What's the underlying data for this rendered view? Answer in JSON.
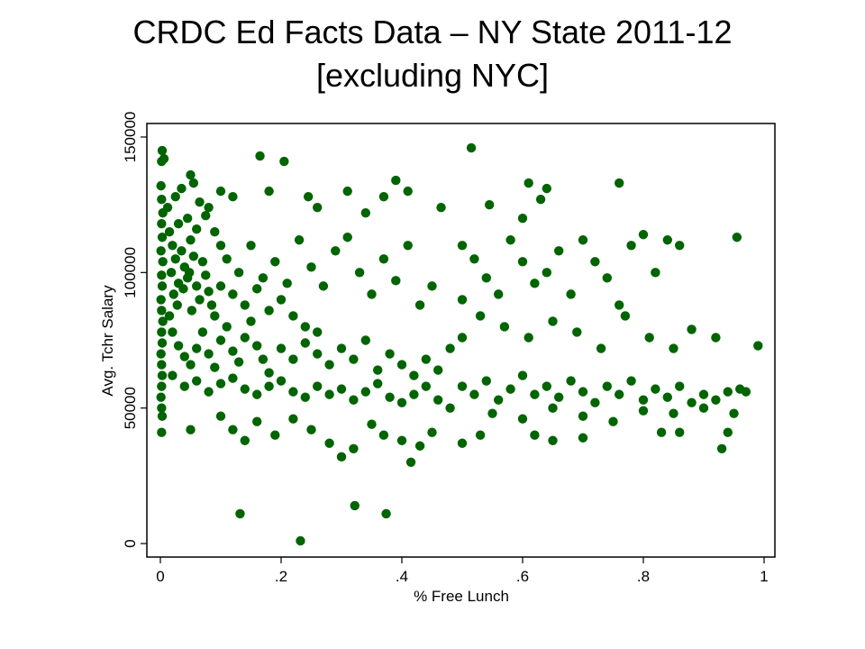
{
  "chart_data": {
    "type": "scatter",
    "title": "CRDC Ed Facts Data – NY State 2011-12",
    "subtitle": "[excluding NYC]",
    "xlabel": "% Free Lunch",
    "ylabel": "Avg. Tchr Salary",
    "xlim": [
      0,
      1
    ],
    "ylim": [
      0,
      150000
    ],
    "xticks": [
      {
        "v": 0,
        "label": "0"
      },
      {
        "v": 0.2,
        "label": ".2"
      },
      {
        "v": 0.4,
        "label": ".4"
      },
      {
        "v": 0.6,
        "label": ".6"
      },
      {
        "v": 0.8,
        "label": ".8"
      },
      {
        "v": 1,
        "label": "1"
      }
    ],
    "yticks": [
      {
        "v": 0,
        "label": "0"
      },
      {
        "v": 50000,
        "label": "50000"
      },
      {
        "v": 100000,
        "label": "100000"
      },
      {
        "v": 150000,
        "label": "150000"
      }
    ],
    "grid": false,
    "marker_color": "#006400",
    "points": [
      [
        0.003,
        145000
      ],
      [
        0.002,
        141000
      ],
      [
        0.006,
        142000
      ],
      [
        0.001,
        132000
      ],
      [
        0.002,
        127000
      ],
      [
        0.004,
        122000
      ],
      [
        0.002,
        118000
      ],
      [
        0.003,
        113000
      ],
      [
        0.001,
        108000
      ],
      [
        0.004,
        104000
      ],
      [
        0.002,
        99000
      ],
      [
        0.003,
        95000
      ],
      [
        0.001,
        90000
      ],
      [
        0.002,
        86000
      ],
      [
        0.004,
        82000
      ],
      [
        0.002,
        78000
      ],
      [
        0.003,
        74000
      ],
      [
        0.001,
        70000
      ],
      [
        0.002,
        66000
      ],
      [
        0.003,
        62000
      ],
      [
        0.002,
        58000
      ],
      [
        0.001,
        54000
      ],
      [
        0.002,
        50000
      ],
      [
        0.003,
        47000
      ],
      [
        0.002,
        41000
      ],
      [
        0.015,
        115000
      ],
      [
        0.02,
        110000
      ],
      [
        0.025,
        105000
      ],
      [
        0.018,
        100000
      ],
      [
        0.03,
        96000
      ],
      [
        0.022,
        92000
      ],
      [
        0.028,
        88000
      ],
      [
        0.015,
        84000
      ],
      [
        0.035,
        108000
      ],
      [
        0.04,
        102000
      ],
      [
        0.045,
        98000
      ],
      [
        0.038,
        94000
      ],
      [
        0.05,
        112000
      ],
      [
        0.055,
        106000
      ],
      [
        0.048,
        100000
      ],
      [
        0.06,
        95000
      ],
      [
        0.065,
        90000
      ],
      [
        0.052,
        86000
      ],
      [
        0.07,
        104000
      ],
      [
        0.075,
        99000
      ],
      [
        0.08,
        93000
      ],
      [
        0.085,
        88000
      ],
      [
        0.09,
        84000
      ],
      [
        0.03,
        118000
      ],
      [
        0.045,
        120000
      ],
      [
        0.06,
        116000
      ],
      [
        0.012,
        124000
      ],
      [
        0.025,
        128000
      ],
      [
        0.05,
        136000
      ],
      [
        0.055,
        133000
      ],
      [
        0.035,
        131000
      ],
      [
        0.065,
        126000
      ],
      [
        0.075,
        121000
      ],
      [
        0.09,
        115000
      ],
      [
        0.1,
        110000
      ],
      [
        0.02,
        78000
      ],
      [
        0.03,
        73000
      ],
      [
        0.04,
        69000
      ],
      [
        0.05,
        66000
      ],
      [
        0.06,
        72000
      ],
      [
        0.07,
        78000
      ],
      [
        0.08,
        70000
      ],
      [
        0.09,
        65000
      ],
      [
        0.1,
        75000
      ],
      [
        0.11,
        80000
      ],
      [
        0.12,
        71000
      ],
      [
        0.13,
        67000
      ],
      [
        0.14,
        76000
      ],
      [
        0.15,
        82000
      ],
      [
        0.16,
        73000
      ],
      [
        0.17,
        68000
      ],
      [
        0.18,
        63000
      ],
      [
        0.02,
        62000
      ],
      [
        0.04,
        58000
      ],
      [
        0.06,
        60000
      ],
      [
        0.08,
        56000
      ],
      [
        0.1,
        59000
      ],
      [
        0.12,
        61000
      ],
      [
        0.14,
        57000
      ],
      [
        0.16,
        55000
      ],
      [
        0.18,
        58000
      ],
      [
        0.2,
        60000
      ],
      [
        0.22,
        56000
      ],
      [
        0.24,
        54000
      ],
      [
        0.26,
        58000
      ],
      [
        0.28,
        55000
      ],
      [
        0.3,
        57000
      ],
      [
        0.32,
        53000
      ],
      [
        0.34,
        56000
      ],
      [
        0.36,
        59000
      ],
      [
        0.38,
        54000
      ],
      [
        0.4,
        52000
      ],
      [
        0.42,
        55000
      ],
      [
        0.44,
        58000
      ],
      [
        0.46,
        53000
      ],
      [
        0.48,
        50000
      ],
      [
        0.1,
        95000
      ],
      [
        0.12,
        92000
      ],
      [
        0.14,
        88000
      ],
      [
        0.16,
        94000
      ],
      [
        0.18,
        86000
      ],
      [
        0.2,
        90000
      ],
      [
        0.22,
        84000
      ],
      [
        0.24,
        80000
      ],
      [
        0.26,
        78000
      ],
      [
        0.11,
        105000
      ],
      [
        0.13,
        100000
      ],
      [
        0.15,
        110000
      ],
      [
        0.17,
        98000
      ],
      [
        0.19,
        104000
      ],
      [
        0.21,
        96000
      ],
      [
        0.23,
        112000
      ],
      [
        0.25,
        102000
      ],
      [
        0.27,
        95000
      ],
      [
        0.29,
        108000
      ],
      [
        0.31,
        113000
      ],
      [
        0.33,
        100000
      ],
      [
        0.35,
        92000
      ],
      [
        0.37,
        105000
      ],
      [
        0.39,
        97000
      ],
      [
        0.41,
        110000
      ],
      [
        0.43,
        88000
      ],
      [
        0.45,
        95000
      ],
      [
        0.2,
        72000
      ],
      [
        0.22,
        68000
      ],
      [
        0.24,
        74000
      ],
      [
        0.26,
        70000
      ],
      [
        0.28,
        66000
      ],
      [
        0.3,
        72000
      ],
      [
        0.32,
        68000
      ],
      [
        0.34,
        75000
      ],
      [
        0.36,
        64000
      ],
      [
        0.38,
        70000
      ],
      [
        0.4,
        66000
      ],
      [
        0.42,
        62000
      ],
      [
        0.44,
        68000
      ],
      [
        0.46,
        64000
      ],
      [
        0.48,
        72000
      ],
      [
        0.5,
        76000
      ],
      [
        0.1,
        130000
      ],
      [
        0.12,
        128000
      ],
      [
        0.08,
        124000
      ],
      [
        0.165,
        143000
      ],
      [
        0.205,
        141000
      ],
      [
        0.18,
        130000
      ],
      [
        0.245,
        128000
      ],
      [
        0.26,
        124000
      ],
      [
        0.31,
        130000
      ],
      [
        0.34,
        122000
      ],
      [
        0.37,
        128000
      ],
      [
        0.39,
        134000
      ],
      [
        0.41,
        130000
      ],
      [
        0.465,
        124000
      ],
      [
        0.515,
        146000
      ],
      [
        0.545,
        125000
      ],
      [
        0.61,
        133000
      ],
      [
        0.63,
        127000
      ],
      [
        0.64,
        131000
      ],
      [
        0.6,
        120000
      ],
      [
        0.76,
        133000
      ],
      [
        0.955,
        113000
      ],
      [
        0.99,
        73000
      ],
      [
        0.5,
        110000
      ],
      [
        0.52,
        105000
      ],
      [
        0.54,
        98000
      ],
      [
        0.56,
        92000
      ],
      [
        0.58,
        112000
      ],
      [
        0.6,
        104000
      ],
      [
        0.62,
        96000
      ],
      [
        0.64,
        100000
      ],
      [
        0.66,
        108000
      ],
      [
        0.68,
        92000
      ],
      [
        0.7,
        112000
      ],
      [
        0.72,
        104000
      ],
      [
        0.74,
        98000
      ],
      [
        0.76,
        88000
      ],
      [
        0.78,
        110000
      ],
      [
        0.8,
        114000
      ],
      [
        0.82,
        100000
      ],
      [
        0.84,
        112000
      ],
      [
        0.86,
        110000
      ],
      [
        0.5,
        90000
      ],
      [
        0.53,
        84000
      ],
      [
        0.57,
        80000
      ],
      [
        0.61,
        76000
      ],
      [
        0.65,
        82000
      ],
      [
        0.69,
        78000
      ],
      [
        0.73,
        72000
      ],
      [
        0.77,
        84000
      ],
      [
        0.81,
        76000
      ],
      [
        0.85,
        72000
      ],
      [
        0.88,
        79000
      ],
      [
        0.92,
        76000
      ],
      [
        0.5,
        58000
      ],
      [
        0.52,
        55000
      ],
      [
        0.54,
        60000
      ],
      [
        0.56,
        53000
      ],
      [
        0.58,
        57000
      ],
      [
        0.6,
        62000
      ],
      [
        0.62,
        55000
      ],
      [
        0.64,
        58000
      ],
      [
        0.66,
        54000
      ],
      [
        0.68,
        60000
      ],
      [
        0.7,
        56000
      ],
      [
        0.72,
        52000
      ],
      [
        0.74,
        58000
      ],
      [
        0.76,
        55000
      ],
      [
        0.78,
        60000
      ],
      [
        0.8,
        53000
      ],
      [
        0.82,
        57000
      ],
      [
        0.84,
        54000
      ],
      [
        0.86,
        58000
      ],
      [
        0.88,
        52000
      ],
      [
        0.9,
        55000
      ],
      [
        0.92,
        53000
      ],
      [
        0.94,
        56000
      ],
      [
        0.96,
        57000
      ],
      [
        0.97,
        56000
      ],
      [
        0.55,
        48000
      ],
      [
        0.6,
        46000
      ],
      [
        0.65,
        50000
      ],
      [
        0.7,
        47000
      ],
      [
        0.75,
        45000
      ],
      [
        0.8,
        49000
      ],
      [
        0.85,
        48000
      ],
      [
        0.9,
        50000
      ],
      [
        0.95,
        48000
      ],
      [
        0.1,
        47000
      ],
      [
        0.12,
        42000
      ],
      [
        0.14,
        38000
      ],
      [
        0.16,
        45000
      ],
      [
        0.19,
        40000
      ],
      [
        0.22,
        46000
      ],
      [
        0.25,
        42000
      ],
      [
        0.28,
        37000
      ],
      [
        0.3,
        32000
      ],
      [
        0.32,
        35000
      ],
      [
        0.35,
        44000
      ],
      [
        0.37,
        40000
      ],
      [
        0.4,
        38000
      ],
      [
        0.415,
        30000
      ],
      [
        0.43,
        36000
      ],
      [
        0.45,
        41000
      ],
      [
        0.5,
        37000
      ],
      [
        0.53,
        40000
      ],
      [
        0.62,
        40000
      ],
      [
        0.65,
        38000
      ],
      [
        0.7,
        39000
      ],
      [
        0.83,
        41000
      ],
      [
        0.86,
        41000
      ],
      [
        0.93,
        35000
      ],
      [
        0.94,
        41000
      ],
      [
        0.05,
        42000
      ],
      [
        0.132,
        11000
      ],
      [
        0.232,
        1000
      ],
      [
        0.322,
        14000
      ],
      [
        0.374,
        11000
      ]
    ]
  }
}
